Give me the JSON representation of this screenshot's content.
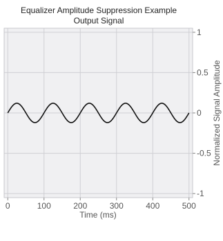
{
  "chart_data": {
    "type": "line",
    "title": "Equalizer Amplitude Suppression Example",
    "subtitle": "Output Signal",
    "xlabel": "Time (ms)",
    "ylabel": "Normalized Signal Amplitude",
    "xlim": [
      -10,
      510
    ],
    "ylim": [
      -1.05,
      1.05
    ],
    "xticks": [
      0,
      100,
      200,
      300,
      400,
      500
    ],
    "xtick_labels": [
      "0",
      "100",
      "200",
      "300",
      "400",
      "500"
    ],
    "yticks": [
      1,
      0.5,
      0,
      -0.5,
      -1
    ],
    "ytick_labels": [
      "1",
      "0.5",
      "0",
      "-0.5",
      "-1"
    ],
    "y_axis_side": "right",
    "grid": true,
    "plot_background": "#f0f0f2",
    "grid_color": "#cfcfd4",
    "line_color": "#111111",
    "series": [
      {
        "amplitude": 0.12,
        "period_ms": 100,
        "x_start": 0,
        "x_end": 500
      }
    ]
  }
}
